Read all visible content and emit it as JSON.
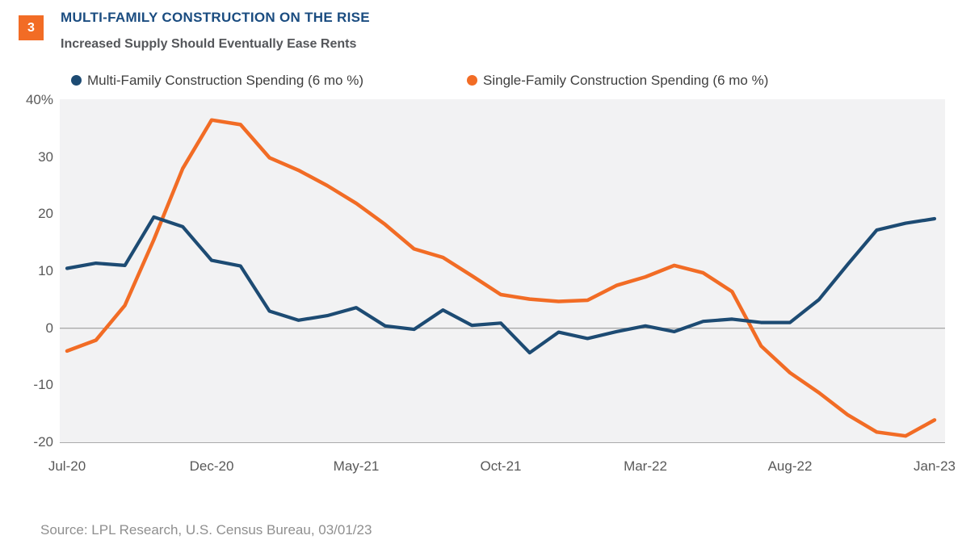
{
  "figure": {
    "badge_number": "3",
    "title": "MULTI-FAMILY CONSTRUCTION ON THE RISE",
    "subtitle": "Increased Supply Should Eventually Ease Rents",
    "source": "Source: LPL Research, U.S. Census Bureau, 03/01/23"
  },
  "legend": [
    {
      "label": "Multi-Family Construction Spending (6 mo %)",
      "color": "#1D4B73",
      "marker": "circle-icon"
    },
    {
      "label": "Single-Family Construction Spending (6 mo %)",
      "color": "#F26C25",
      "marker": "circle-icon"
    }
  ],
  "colors": {
    "navy_line": "#1D4B73",
    "orange_line": "#F26C25",
    "title_blue": "#1A4C80",
    "subtitle_gray": "#54565A",
    "axis_label_gray": "#595959",
    "source_gray": "#8F8F8F",
    "plot_background": "#F2F2F3",
    "zero_line_gray": "#9C9C9C",
    "badge_orange": "#F26C25"
  },
  "chart_data": {
    "type": "line",
    "x": [
      "Jul-20",
      "Aug-20",
      "Sep-20",
      "Oct-20",
      "Nov-20",
      "Dec-20",
      "Jan-21",
      "Feb-21",
      "Mar-21",
      "Apr-21",
      "May-21",
      "Jun-21",
      "Jul-21",
      "Aug-21",
      "Sep-21",
      "Oct-21",
      "Nov-21",
      "Dec-21",
      "Jan-22",
      "Feb-22",
      "Mar-22",
      "Apr-22",
      "May-22",
      "Jun-22",
      "Jul-22",
      "Aug-22",
      "Sep-22",
      "Oct-22",
      "Nov-22",
      "Dec-22",
      "Jan-23"
    ],
    "series": [
      {
        "name": "Multi-Family Construction Spending (6 mo %)",
        "color": "#1D4B73",
        "values": [
          10.5,
          11.4,
          11.0,
          19.5,
          17.8,
          11.9,
          10.9,
          3.0,
          1.4,
          2.2,
          3.6,
          0.4,
          -0.2,
          3.2,
          0.5,
          0.9,
          -4.3,
          -0.7,
          -1.8,
          -0.6,
          0.4,
          -0.6,
          1.2,
          1.6,
          1.0,
          1.0,
          5.0,
          11.2,
          17.2,
          18.4,
          19.2
        ]
      },
      {
        "name": "Single-Family Construction Spending (6 mo %)",
        "color": "#F26C25",
        "values": [
          -4.0,
          -2.1,
          4.0,
          15.5,
          28.0,
          36.5,
          35.7,
          29.9,
          27.7,
          25.0,
          21.9,
          18.2,
          13.9,
          12.4,
          9.2,
          5.9,
          5.1,
          4.7,
          4.9,
          7.5,
          9.0,
          11.0,
          9.7,
          6.4,
          -3.1,
          -7.8,
          -11.3,
          -15.2,
          -18.2,
          -18.9,
          -16.1
        ]
      }
    ],
    "ylim": [
      -20,
      40
    ],
    "y_ticks": [
      40,
      30,
      20,
      10,
      0,
      -10,
      -20
    ],
    "y_tick_labels": [
      "40%",
      "30",
      "20",
      "10",
      "0",
      "-10",
      "-20"
    ],
    "x_tick_labels": [
      "Jul-20",
      "Dec-20",
      "May-21",
      "Oct-21",
      "Mar-22",
      "Aug-22",
      "Jan-23"
    ],
    "x_tick_positions": [
      0,
      5,
      10,
      15,
      20,
      25,
      30
    ],
    "grid": false,
    "legend_position": "top",
    "zero_line": true
  }
}
